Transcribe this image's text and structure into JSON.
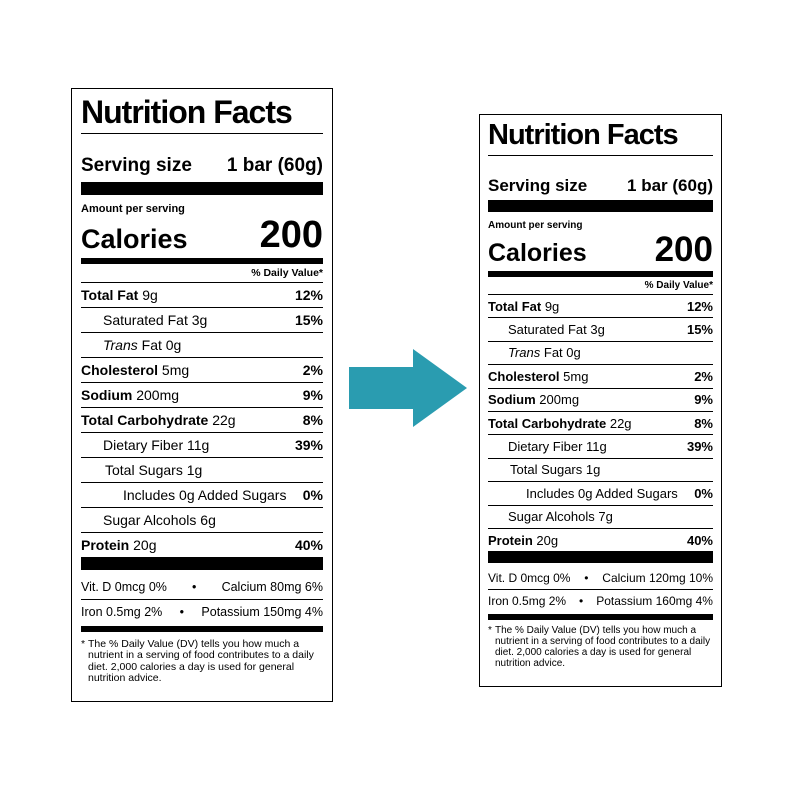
{
  "arrow_color": "#2a9cb0",
  "labels": [
    {
      "title": "Nutrition Facts",
      "serving_label": "Serving size",
      "serving_value": "1 bar (60g)",
      "amount_per_serving": "Amount per serving",
      "calories_label": "Calories",
      "calories_value": "200",
      "daily_value_header": "% Daily Value*",
      "nutrients": {
        "total_fat": {
          "label": "Total Fat",
          "amount": "9g",
          "dv": "12%"
        },
        "saturated_fat": {
          "label": "Saturated Fat 3g",
          "dv": "15%"
        },
        "trans_fat": {
          "italic": "Trans",
          "label": "Fat 0g"
        },
        "cholesterol": {
          "label": "Cholesterol",
          "amount": "5mg",
          "dv": "2%"
        },
        "sodium": {
          "label": "Sodium",
          "amount": "200mg",
          "dv": "9%"
        },
        "total_carb": {
          "label": "Total Carbohydrate",
          "amount": "22g",
          "dv": "8%"
        },
        "dietary_fiber": {
          "label": "Dietary Fiber 11g",
          "dv": "39%"
        },
        "total_sugars": {
          "label": "Total Sugars 1g"
        },
        "added_sugars": {
          "label": "Includes 0g Added Sugars",
          "dv": "0%"
        },
        "sugar_alcohols": {
          "label": "Sugar Alcohols 6g"
        },
        "protein": {
          "label": "Protein",
          "amount": "20g",
          "dv": "40%"
        }
      },
      "vitamins": [
        {
          "left": "Vit. D 0mcg 0%",
          "bullet": "•",
          "right": "Calcium 80mg 6%"
        },
        {
          "left": "Iron 0.5mg 2%",
          "bullet": "•",
          "right": "Potassium 150mg 4%"
        }
      ],
      "footnote_star": "*",
      "footnote": "The % Daily Value (DV) tells you how much a nutrient in a serving of food contributes to a daily diet. 2,000 calories a day is used for general nutrition advice."
    },
    {
      "title": "Nutrition Facts",
      "serving_label": "Serving size",
      "serving_value": "1 bar (60g)",
      "amount_per_serving": "Amount per serving",
      "calories_label": "Calories",
      "calories_value": "200",
      "daily_value_header": "% Daily Value*",
      "nutrients": {
        "total_fat": {
          "label": "Total Fat",
          "amount": "9g",
          "dv": "12%"
        },
        "saturated_fat": {
          "label": "Saturated Fat 3g",
          "dv": "15%"
        },
        "trans_fat": {
          "italic": "Trans",
          "label": "Fat 0g"
        },
        "cholesterol": {
          "label": "Cholesterol",
          "amount": "5mg",
          "dv": "2%"
        },
        "sodium": {
          "label": "Sodium",
          "amount": "200mg",
          "dv": "9%"
        },
        "total_carb": {
          "label": "Total Carbohydrate",
          "amount": "22g",
          "dv": "8%"
        },
        "dietary_fiber": {
          "label": "Dietary Fiber 11g",
          "dv": "39%"
        },
        "total_sugars": {
          "label": "Total Sugars 1g"
        },
        "added_sugars": {
          "label": "Includes 0g Added Sugars",
          "dv": "0%"
        },
        "sugar_alcohols": {
          "label": "Sugar Alcohols 7g"
        },
        "protein": {
          "label": "Protein",
          "amount": "20g",
          "dv": "40%"
        }
      },
      "vitamins": [
        {
          "left": "Vit. D 0mcg 0%",
          "bullet": "•",
          "right": "Calcium 120mg 10%"
        },
        {
          "left": "Iron 0.5mg 2%",
          "bullet": "•",
          "right": "Potassium 160mg 4%"
        }
      ],
      "footnote_star": "*",
      "footnote": "The % Daily Value (DV) tells you how much a nutrient in a serving of food contributes to a daily diet. 2,000 calories a day is used for general nutrition advice."
    }
  ]
}
